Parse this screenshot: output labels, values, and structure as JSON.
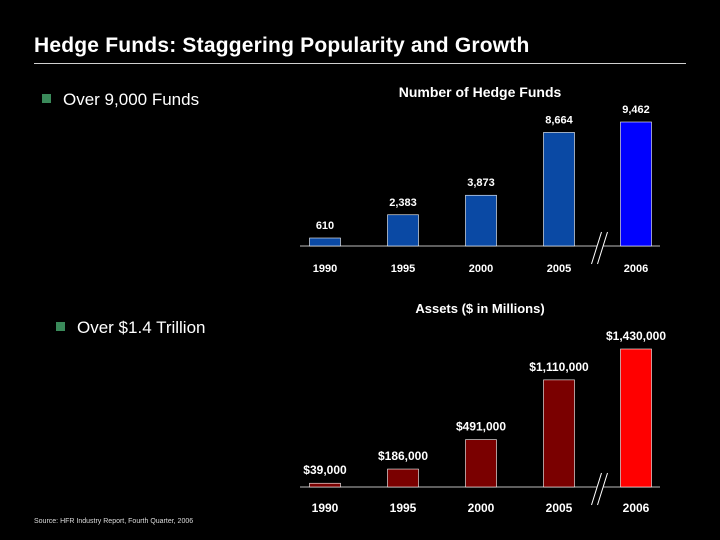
{
  "page": {
    "title": "Hedge Funds: Staggering Popularity and Growth",
    "bullets": [
      "Over 9,000 Funds",
      "Over $1.4 Trillion"
    ],
    "source": "Source: HFR Industry Report, Fourth Quarter, 2006"
  },
  "colors": {
    "accent_bullet": "#3a8a5a",
    "funds_bar": "#0a49a4",
    "funds_highlight": "#0000ff",
    "assets_bar": "#7a0000",
    "assets_highlight": "#ff0000"
  },
  "chart_data": [
    {
      "type": "bar",
      "title": "Number of Hedge Funds",
      "categories": [
        "1990",
        "1995",
        "2000",
        "2005",
        "2006"
      ],
      "values": [
        610,
        2383,
        3873,
        8664,
        9462
      ],
      "labels": [
        "610",
        "2,383",
        "3,873",
        "8,664",
        "9,462"
      ],
      "highlight_index": 4,
      "axis_break_between": [
        "2005",
        "2006"
      ],
      "ylim": [
        0,
        9462
      ]
    },
    {
      "type": "bar",
      "title": "Assets ($ in Millions)",
      "categories": [
        "1990",
        "1995",
        "2000",
        "2005",
        "2006"
      ],
      "values": [
        39000,
        186000,
        491000,
        1110000,
        1430000
      ],
      "labels": [
        "$39,000",
        "$186,000",
        "$491,000",
        "$1,110,000",
        "$1,430,000"
      ],
      "highlight_index": 4,
      "axis_break_between": [
        "2005",
        "2006"
      ],
      "ylim": [
        0,
        1430000
      ]
    }
  ]
}
